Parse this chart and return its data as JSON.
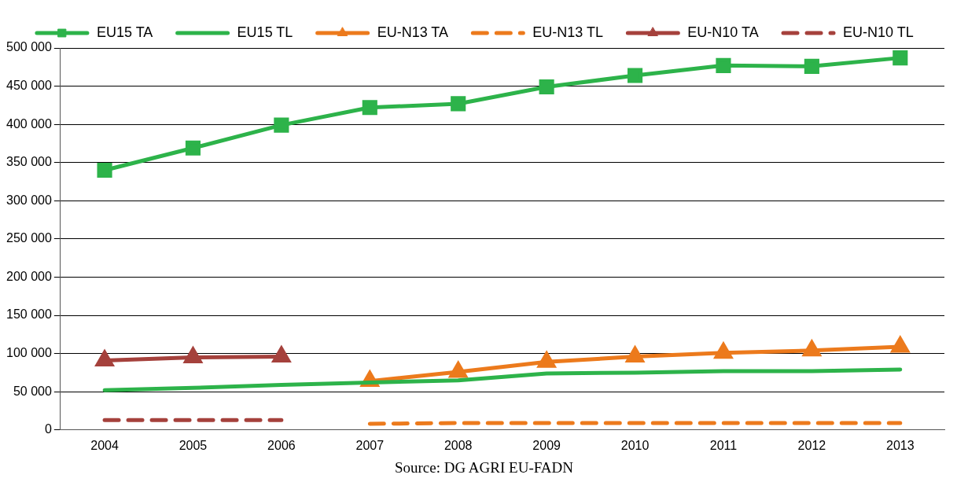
{
  "chart_data": {
    "type": "line",
    "categories": [
      "2004",
      "2005",
      "2006",
      "2007",
      "2008",
      "2009",
      "2010",
      "2011",
      "2012",
      "2013"
    ],
    "series": [
      {
        "name": "EU15 TA",
        "color": "#2db34a",
        "marker": "square",
        "line_style": "solid",
        "values": [
          340000,
          369000,
          399000,
          422000,
          427000,
          449000,
          464000,
          477000,
          476000,
          487000
        ]
      },
      {
        "name": "EU15 TL",
        "color": "#2db34a",
        "marker": "none",
        "line_style": "solid",
        "values": [
          52000,
          55000,
          59000,
          62000,
          65000,
          74000,
          75000,
          77000,
          77000,
          79000
        ]
      },
      {
        "name": "EU-N13 TA",
        "color": "#ec7a1c",
        "marker": "triangle",
        "line_style": "solid",
        "values": [
          null,
          null,
          null,
          64000,
          76000,
          89000,
          96000,
          101000,
          104000,
          109000
        ]
      },
      {
        "name": "EU-N13 TL",
        "color": "#ec7a1c",
        "marker": "none",
        "line_style": "dashed",
        "values": [
          null,
          null,
          null,
          8000,
          9000,
          9000,
          9000,
          9000,
          9000,
          9000
        ]
      },
      {
        "name": "EU-N10 TA",
        "color": "#a5413c",
        "marker": "triangle",
        "line_style": "solid",
        "values": [
          91000,
          95000,
          96000,
          null,
          null,
          null,
          null,
          null,
          null,
          null
        ]
      },
      {
        "name": "EU-N10 TL",
        "color": "#a5413c",
        "marker": "none",
        "line_style": "dashed",
        "values": [
          13000,
          13000,
          13000,
          null,
          null,
          null,
          null,
          null,
          null,
          null
        ]
      }
    ],
    "ylim": [
      0,
      500000
    ],
    "yticks": [
      {
        "value": 0,
        "label": "0"
      },
      {
        "value": 50000,
        "label": "50 000"
      },
      {
        "value": 100000,
        "label": "100 000"
      },
      {
        "value": 150000,
        "label": "150 000"
      },
      {
        "value": 200000,
        "label": "200 000"
      },
      {
        "value": 250000,
        "label": "250 000"
      },
      {
        "value": 300000,
        "label": "300 000"
      },
      {
        "value": 350000,
        "label": "350 000"
      },
      {
        "value": 400000,
        "label": "400 000"
      },
      {
        "value": 450000,
        "label": "450 000"
      },
      {
        "value": 500000,
        "label": "500 000"
      }
    ],
    "grid": "y",
    "legend": "top",
    "annotations": [
      "Source: DG AGRI EU-FADN"
    ]
  }
}
